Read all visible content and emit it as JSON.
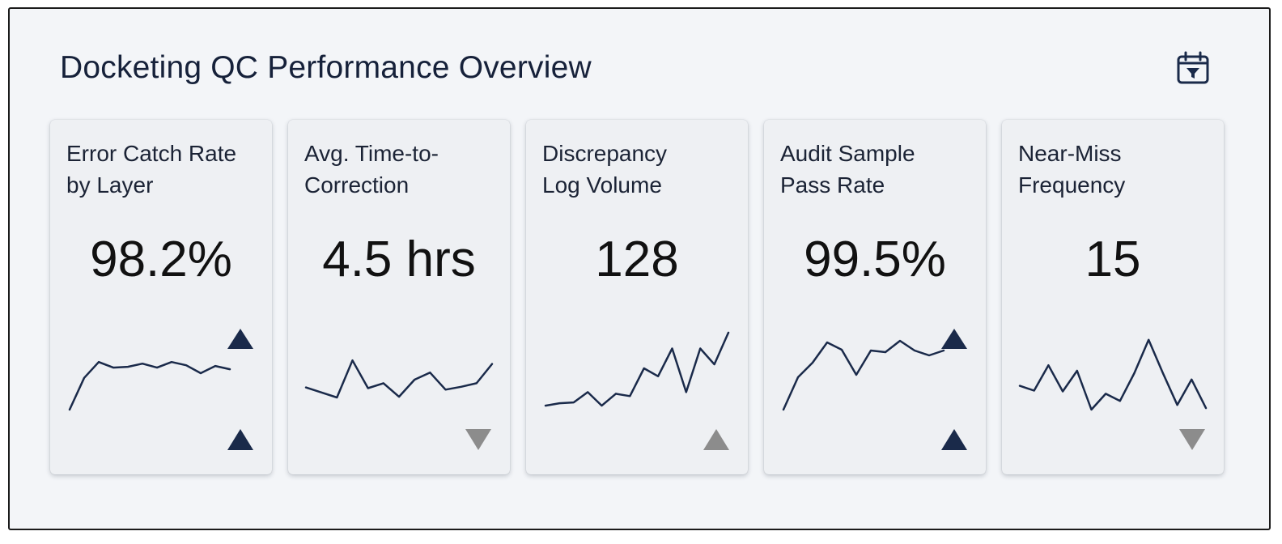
{
  "header": {
    "title": "Docketing QC Performance Overview",
    "filter_icon": "calendar-filter-icon"
  },
  "colors": {
    "navy": "#1a2a4a",
    "gray": "#8c8c8c"
  },
  "cards": [
    {
      "label_line1": "Error Catch Rate",
      "label_line2": "by Layer",
      "value": "98.2%",
      "sparkline": [
        2,
        42,
        62,
        55,
        56,
        60,
        55,
        62,
        58,
        48,
        57,
        53
      ],
      "inline_marker": "up",
      "trend": "up",
      "trend_color": "navy"
    },
    {
      "label_line1": "Avg. Time-to-",
      "label_line2": "Correction",
      "value": "4.5 hrs",
      "sparkline": [
        22,
        15,
        8,
        60,
        21,
        28,
        9,
        33,
        43,
        19,
        23,
        28,
        55
      ],
      "inline_marker": null,
      "trend": "down",
      "trend_color": "gray"
    },
    {
      "label_line1": "Discrepancy",
      "label_line2": "Log Volume",
      "value": "128",
      "sparkline": [
        3,
        6,
        7,
        20,
        3,
        18,
        15,
        50,
        40,
        75,
        20,
        75,
        55,
        95
      ],
      "inline_marker": null,
      "trend": "up",
      "trend_color": "gray"
    },
    {
      "label_line1": "Audit Sample",
      "label_line2": "Pass Rate",
      "value": "99.5%",
      "sparkline": [
        2,
        42,
        60,
        85,
        76,
        45,
        75,
        73,
        87,
        75,
        69,
        75
      ],
      "inline_marker": "up",
      "trend": "up",
      "trend_color": "navy"
    },
    {
      "label_line1": "Near-Miss",
      "label_line2": "Frequency",
      "value": "15",
      "sparkline": [
        32,
        26,
        58,
        25,
        51,
        2,
        22,
        13,
        48,
        90,
        48,
        8,
        40,
        4
      ],
      "inline_marker": null,
      "trend": "down",
      "trend_color": "gray"
    }
  ]
}
